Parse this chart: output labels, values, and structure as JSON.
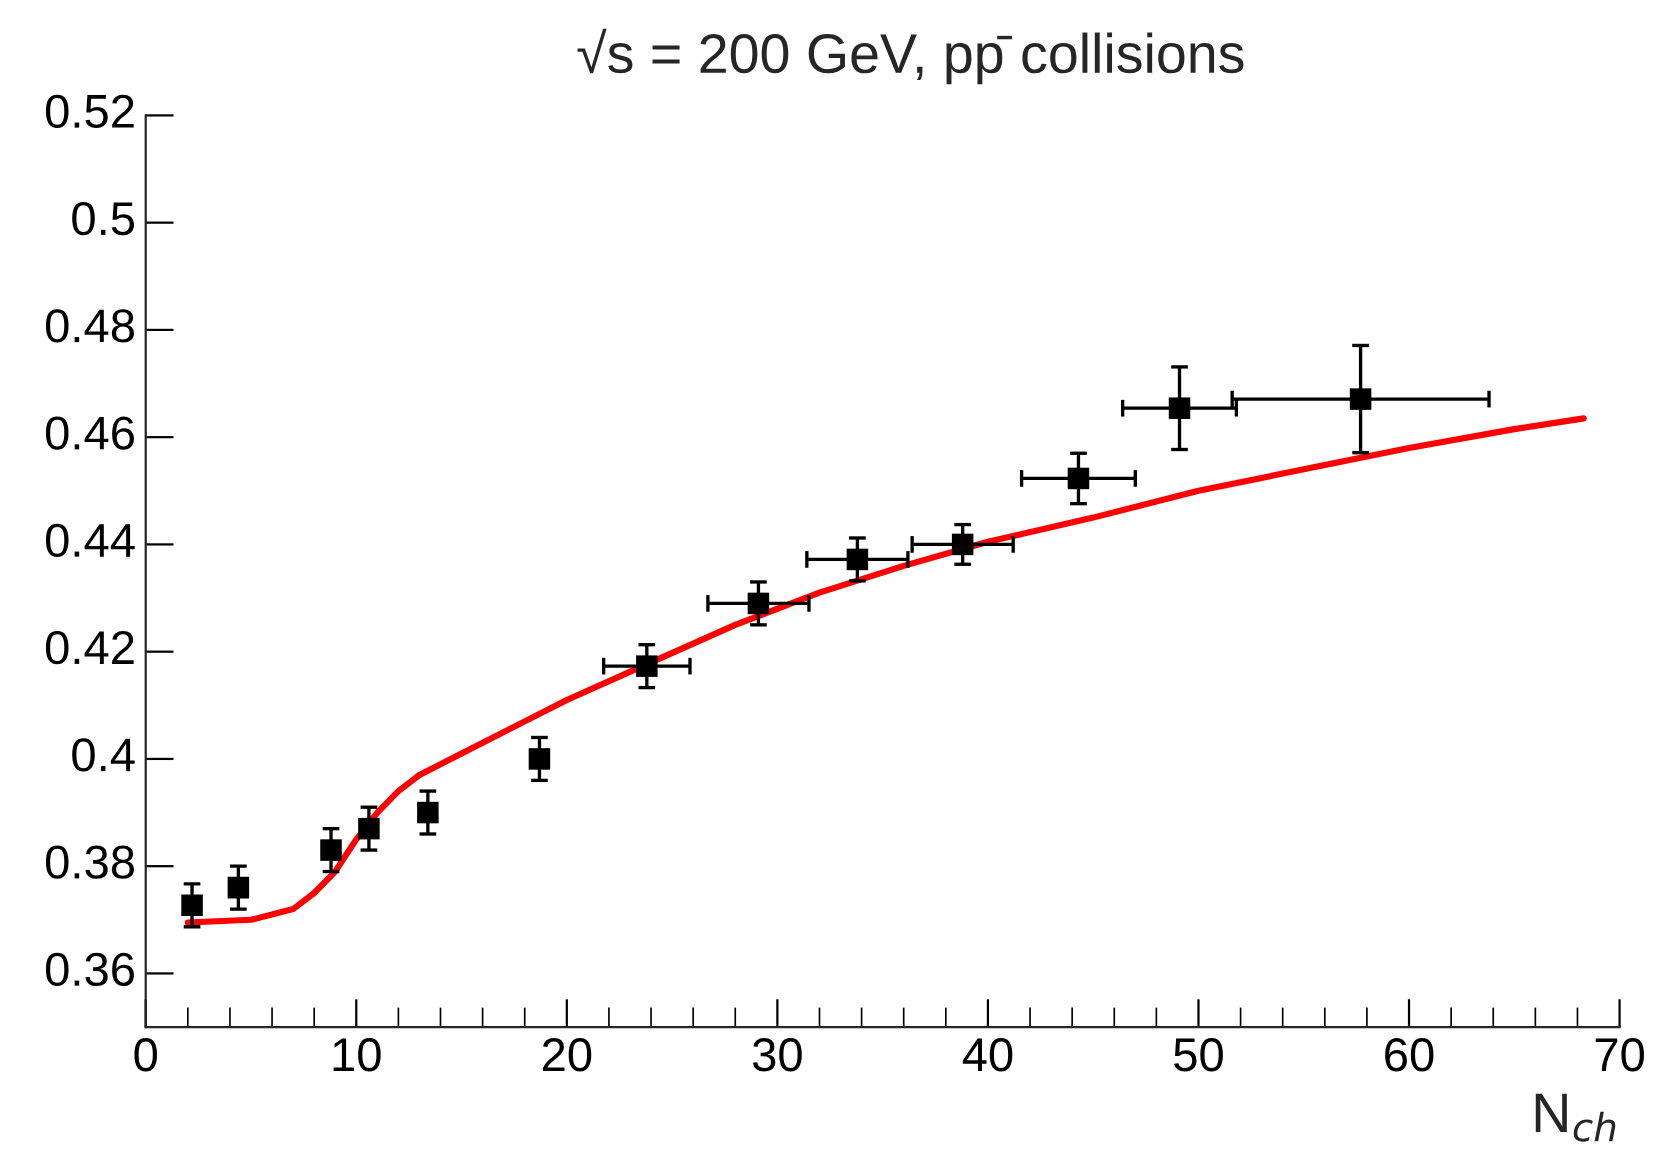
{
  "chart_data": {
    "type": "scatter",
    "title": "√s = 200 GeV, pp̄ collisions",
    "xlabel": "N$_{ch}$",
    "series": [
      {
        "type": "scatter",
        "color": "#000000",
        "marker": "square",
        "x": [
          2.2,
          4.4,
          8.8,
          10.6,
          13.4,
          18.7,
          23.8,
          29.1,
          33.8,
          38.8,
          44.3,
          49.1,
          57.7
        ],
        "values": [
          0.3727,
          0.376,
          0.383,
          0.387,
          0.39,
          0.4,
          0.4173,
          0.429,
          0.4372,
          0.44,
          0.4523,
          0.4654,
          0.4671
        ],
        "errors": [
          0.004,
          0.004,
          0.004,
          0.004,
          0.004,
          0.004,
          0.004,
          0.004,
          0.004,
          0.0037,
          0.0047,
          0.0077,
          0.01
        ],
        "xerrors": [
          null,
          null,
          null,
          null,
          null,
          null,
          2.05,
          2.4,
          2.4,
          2.4,
          2.7,
          2.7,
          6.1
        ]
      },
      {
        "type": "line",
        "color": "#ff0000",
        "marker": "none",
        "line_style": "solid",
        "x": [
          2,
          5,
          7,
          8,
          9,
          10,
          11,
          12,
          13,
          15,
          18,
          20,
          24,
          28,
          32,
          36,
          40,
          45,
          50,
          55,
          60,
          65,
          68.3
        ],
        "values": [
          0.3695,
          0.37,
          0.372,
          0.375,
          0.379,
          0.385,
          0.39,
          0.394,
          0.397,
          0.401,
          0.407,
          0.411,
          0.418,
          0.425,
          0.431,
          0.436,
          0.4405,
          0.445,
          0.45,
          0.454,
          0.458,
          0.4615,
          0.4635
        ]
      }
    ],
    "xlim": [
      0,
      70
    ],
    "xticks": [
      0,
      10,
      20,
      30,
      40,
      50,
      60,
      70
    ],
    "ylim": [
      0.35,
      0.52
    ],
    "yticks": [
      0.36,
      0.38,
      0.4,
      0.42,
      0.44,
      0.46,
      0.48,
      0.5,
      0.52
    ],
    "grid": false,
    "legend": false
  }
}
